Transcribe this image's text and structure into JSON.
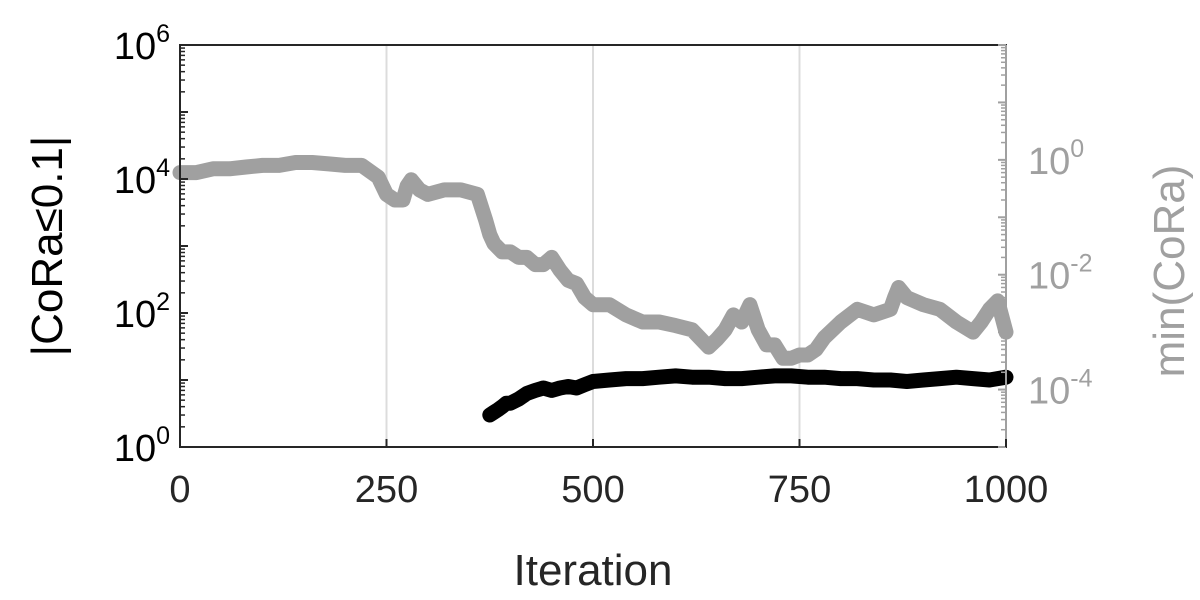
{
  "chart_data": {
    "type": "line",
    "title": "",
    "xlabel": "Iteration",
    "ylabel_left": "|CoRa≤0.1|",
    "ylabel_right": "min(CoRa)",
    "xlim": [
      0,
      1000
    ],
    "xticks": [
      0,
      250,
      500,
      750,
      1000
    ],
    "xtick_labels": [
      "0",
      "250",
      "500",
      "750",
      "1000"
    ],
    "left_axis": {
      "scale": "log",
      "lim": [
        1,
        1000000
      ],
      "ticks": [
        {
          "value": 1,
          "base": "10",
          "exp": "0"
        },
        {
          "value": 100,
          "base": "10",
          "exp": "2"
        },
        {
          "value": 10000,
          "base": "10",
          "exp": "4"
        },
        {
          "value": 1000000,
          "base": "10",
          "exp": "6"
        }
      ],
      "color": "#000000"
    },
    "right_axis": {
      "scale": "log",
      "lim": [
        1e-05,
        100
      ],
      "ticks": [
        {
          "value": 0.0001,
          "base": "10",
          "exp": "-4"
        },
        {
          "value": 0.01,
          "base": "10",
          "exp": "-2"
        },
        {
          "value": 1,
          "base": "10",
          "exp": "0"
        }
      ],
      "color": "#a0a0a0"
    },
    "grid": {
      "x": true,
      "y": false
    },
    "series": [
      {
        "axis": "left",
        "color": "#000000",
        "x": [
          375,
          380,
          385,
          390,
          395,
          400,
          410,
          420,
          430,
          440,
          450,
          460,
          470,
          480,
          490,
          500,
          520,
          540,
          560,
          580,
          600,
          620,
          640,
          660,
          680,
          700,
          720,
          740,
          760,
          780,
          800,
          820,
          840,
          860,
          880,
          900,
          920,
          940,
          960,
          980,
          1000
        ],
        "y": [
          3,
          3.3,
          3.6,
          4,
          4.5,
          4.5,
          5.2,
          6.3,
          7,
          7.6,
          7,
          7.6,
          8,
          7.6,
          8.5,
          9.5,
          10,
          10.5,
          10.5,
          11,
          11.5,
          11,
          11,
          10.5,
          10.5,
          11,
          11.5,
          11.5,
          11,
          11,
          10.5,
          10.5,
          10,
          10,
          9.5,
          10,
          10.5,
          11,
          10.5,
          10,
          11
        ]
      },
      {
        "axis": "right",
        "color": "#a0a0a0",
        "x": [
          0,
          20,
          40,
          60,
          80,
          100,
          120,
          140,
          160,
          180,
          200,
          220,
          240,
          250,
          260,
          270,
          275,
          280,
          290,
          300,
          320,
          340,
          360,
          370,
          375,
          380,
          390,
          400,
          410,
          420,
          430,
          440,
          450,
          460,
          470,
          480,
          490,
          500,
          510,
          520,
          540,
          560,
          580,
          600,
          620,
          640,
          650,
          660,
          670,
          680,
          690,
          700,
          710,
          720,
          730,
          740,
          750,
          760,
          770,
          780,
          800,
          820,
          840,
          860,
          865,
          870,
          880,
          900,
          920,
          940,
          960,
          970,
          980,
          990,
          1000
        ],
        "y": [
          0.6,
          0.6,
          0.7,
          0.7,
          0.75,
          0.8,
          0.8,
          0.9,
          0.9,
          0.85,
          0.8,
          0.8,
          0.5,
          0.25,
          0.2,
          0.2,
          0.35,
          0.45,
          0.3,
          0.25,
          0.3,
          0.3,
          0.25,
          0.09,
          0.05,
          0.035,
          0.025,
          0.025,
          0.02,
          0.02,
          0.015,
          0.015,
          0.02,
          0.012,
          0.008,
          0.007,
          0.004,
          0.003,
          0.003,
          0.003,
          0.002,
          0.0015,
          0.0015,
          0.0013,
          0.0011,
          0.00055,
          0.00075,
          0.0011,
          0.002,
          0.0015,
          0.003,
          0.0011,
          0.0006,
          0.0006,
          0.00035,
          0.00035,
          0.0004,
          0.0004,
          0.0005,
          0.0008,
          0.0015,
          0.0025,
          0.002,
          0.0025,
          0.004,
          0.006,
          0.004,
          0.003,
          0.0025,
          0.0015,
          0.001,
          0.0015,
          0.0025,
          0.0035,
          0.001
        ]
      }
    ]
  }
}
